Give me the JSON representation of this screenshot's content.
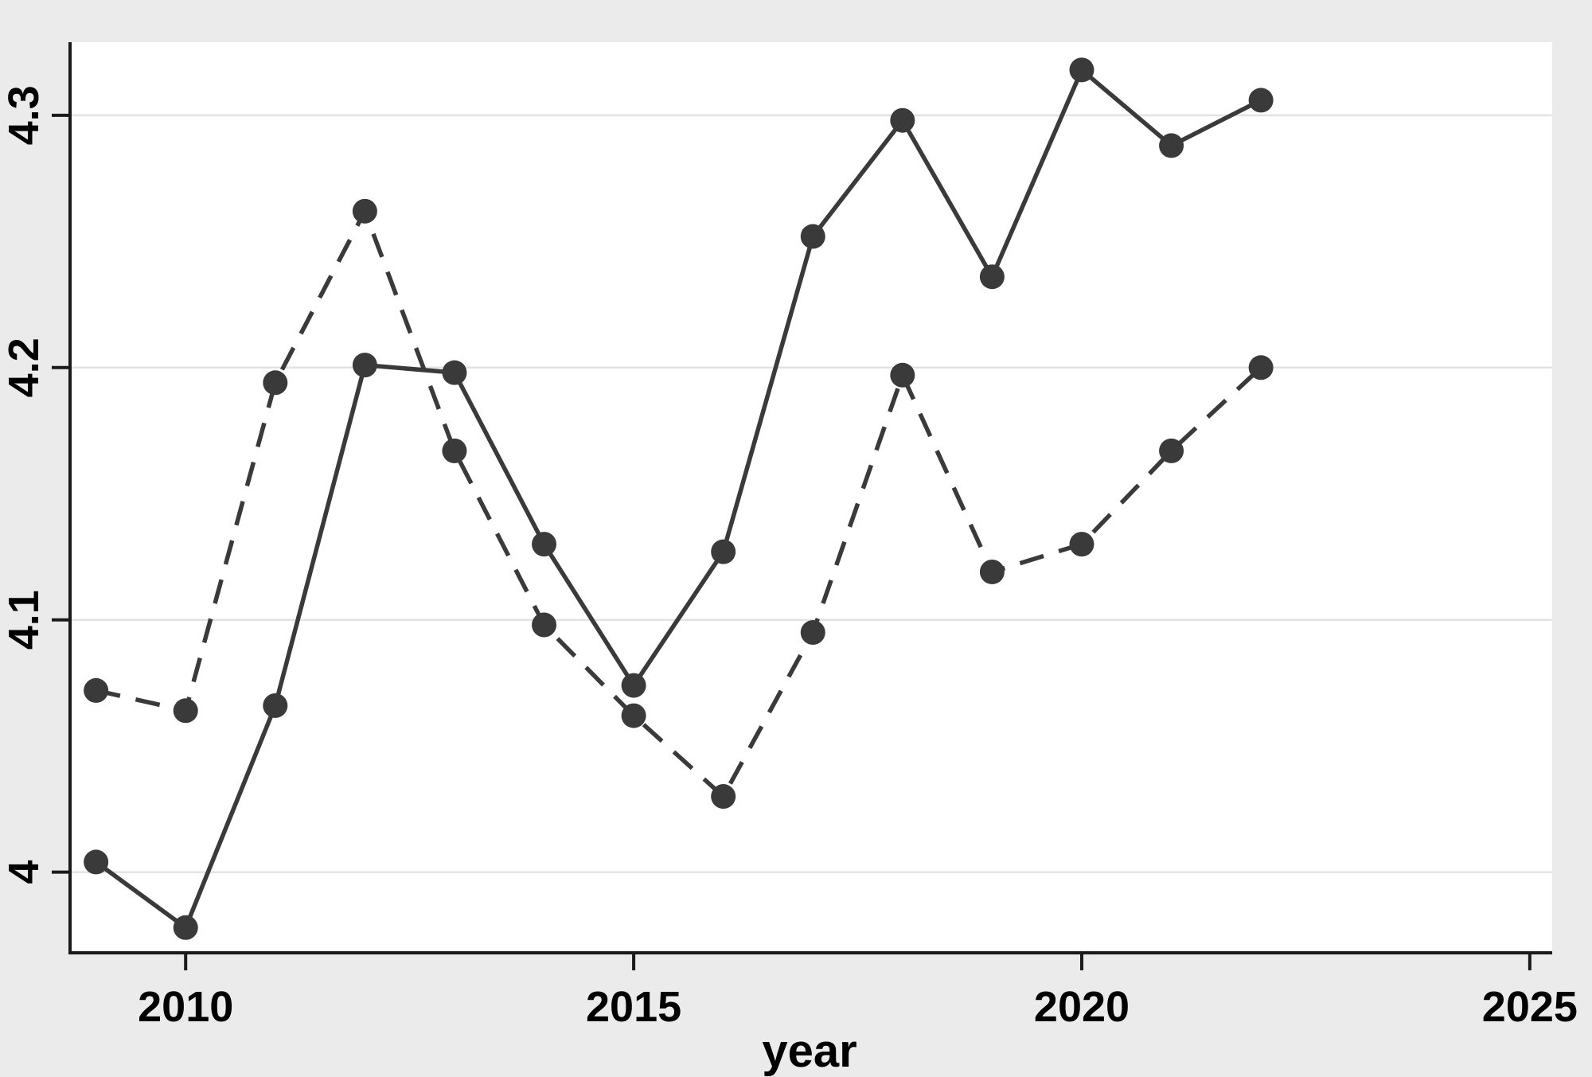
{
  "chart_data": {
    "type": "line",
    "title": "",
    "xlabel": "year",
    "ylabel": "",
    "x": [
      2009,
      2010,
      2011,
      2012,
      2013,
      2014,
      2015,
      2016,
      2017,
      2018,
      2019,
      2020,
      2021,
      2022
    ],
    "series": [
      {
        "name": "solid-line-series",
        "line_style": "solid",
        "marker": "filled-circle",
        "values": [
          4.004,
          3.978,
          4.066,
          4.201,
          4.198,
          4.13,
          4.074,
          4.127,
          4.252,
          4.298,
          4.236,
          4.318,
          4.288,
          4.306
        ]
      },
      {
        "name": "dashed-line-series",
        "line_style": "dashed",
        "marker": "filled-circle",
        "values": [
          4.072,
          4.064,
          4.194,
          4.262,
          4.167,
          4.098,
          4.062,
          4.03,
          4.095,
          4.197,
          4.119,
          4.13,
          4.167,
          4.2
        ]
      }
    ],
    "x_ticks": [
      2010,
      2015,
      2020,
      2025
    ],
    "x_tick_labels": [
      "2010",
      "2015",
      "2020",
      "2025"
    ],
    "y_ticks": [
      4.0,
      4.1,
      4.2,
      4.3
    ],
    "y_tick_labels": [
      "4",
      "4.1",
      "4.2",
      "4.3"
    ],
    "x_range": [
      2008.71,
      2025.25
    ],
    "y_range": [
      3.968,
      4.329
    ],
    "grid": true,
    "legend": "none",
    "colors": {
      "line": "#3a3a3a",
      "marker": "#3a3a3a",
      "gridline": "#e3e3e3",
      "axis": "#1a1a1a",
      "tick_text": "#000000",
      "outer_background": "#ebebeb",
      "plot_background": "#ffffff"
    }
  }
}
